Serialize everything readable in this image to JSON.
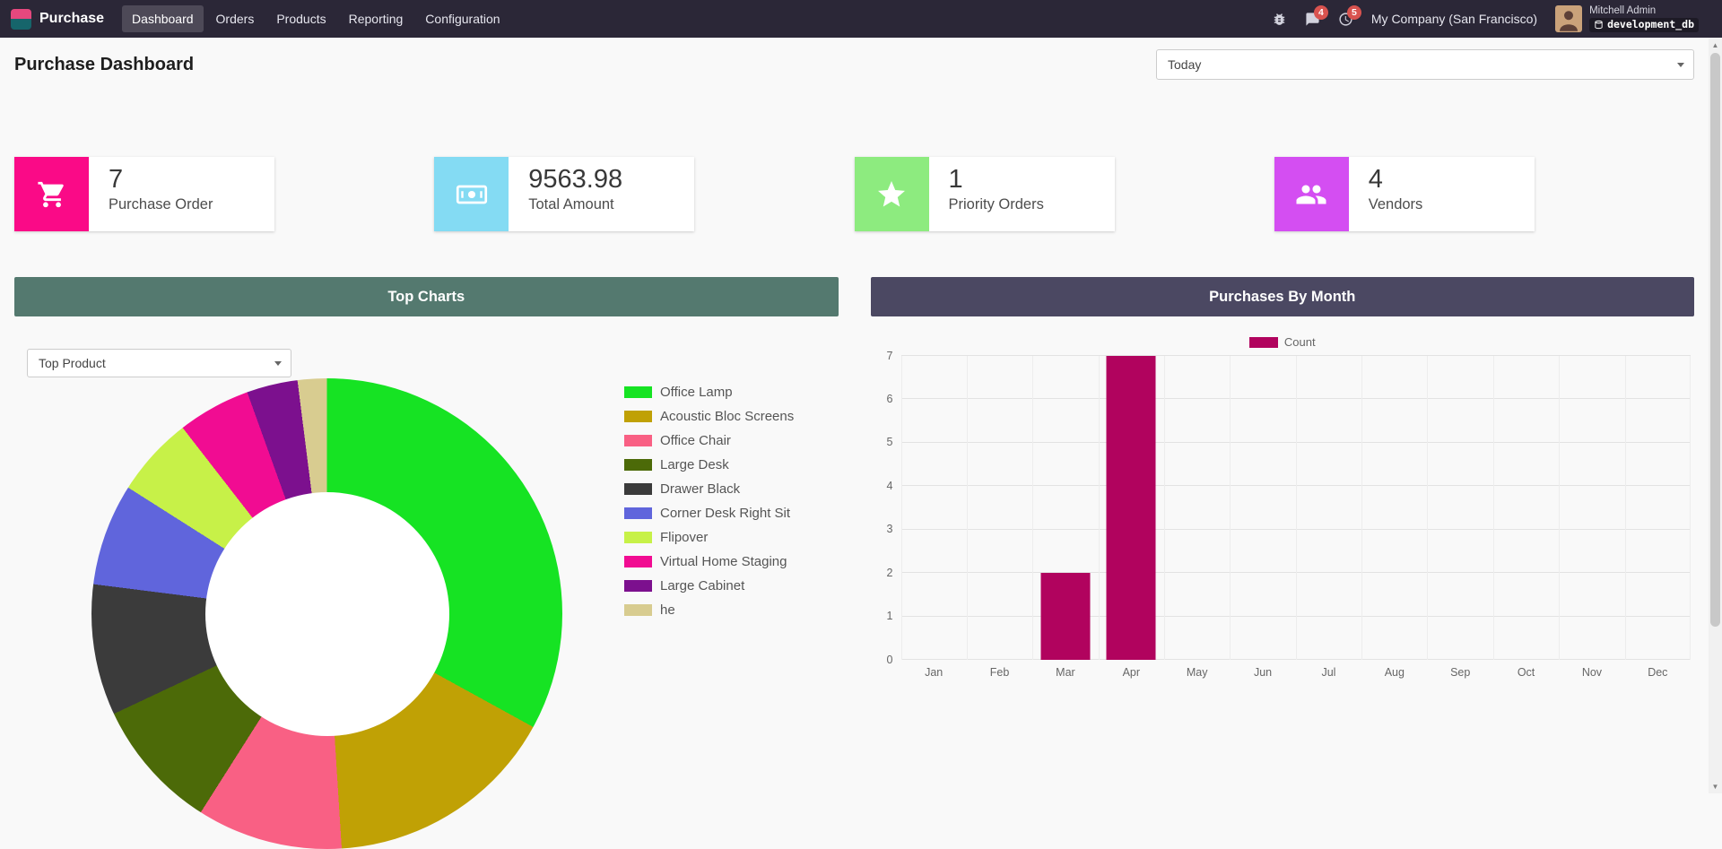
{
  "colors": {
    "navbar": "#2b2737",
    "badge": "#d9534f",
    "panel_teal": "#54796f",
    "panel_slate": "#4b4862",
    "bar": "#b1035e",
    "app_icon_top": "#e5487e",
    "app_icon_bottom": "#16656b"
  },
  "nav": {
    "brand": "Purchase",
    "menu": [
      {
        "label": "Dashboard",
        "active": true
      },
      {
        "label": "Orders",
        "active": false
      },
      {
        "label": "Products",
        "active": false
      },
      {
        "label": "Reporting",
        "active": false
      },
      {
        "label": "Configuration",
        "active": false
      }
    ],
    "systray": {
      "messages_badge": "4",
      "activities_badge": "5",
      "company": "My Company (San Francisco)",
      "user_name": "Mitchell Admin",
      "database": "development_db"
    }
  },
  "header": {
    "title": "Purchase Dashboard",
    "filter_value": "Today"
  },
  "kpis": [
    {
      "value": "7",
      "label": "Purchase Order",
      "icon": "cart-icon",
      "color": "#fa0a87"
    },
    {
      "value": "9563.98",
      "label": "Total Amount",
      "icon": "money-icon",
      "color": "#84dbf3"
    },
    {
      "value": "1",
      "label": "Priority Orders",
      "icon": "star-icon",
      "color": "#8deb7f"
    },
    {
      "value": "4",
      "label": "Vendors",
      "icon": "users-icon",
      "color": "#d44ef2"
    }
  ],
  "panels": {
    "top_charts": {
      "title": "Top Charts",
      "selector_value": "Top Product"
    },
    "purchases_by_month": {
      "title": "Purchases By Month",
      "legend": "Count"
    }
  },
  "chart_data": [
    {
      "type": "pie",
      "title": "Top Charts",
      "donut": true,
      "legend_position": "right",
      "labels": [
        "Office Lamp",
        "Acoustic Bloc Screens",
        "Office Chair",
        "Large Desk",
        "Drawer Black",
        "Corner Desk Right Sit",
        "Flipover",
        "Virtual Home Staging",
        "Large Cabinet",
        "he"
      ],
      "values": [
        33,
        16,
        10,
        9,
        9,
        7,
        5.5,
        5,
        3.5,
        2
      ],
      "colors": [
        "#16e323",
        "#c0a105",
        "#f96084",
        "#4c6a08",
        "#3b3b3b",
        "#6065dc",
        "#c7f148",
        "#f10c92",
        "#7c108e",
        "#d8cc90"
      ]
    },
    {
      "type": "bar",
      "title": "Purchases By Month",
      "categories": [
        "Jan",
        "Feb",
        "Mar",
        "Apr",
        "May",
        "Jun",
        "Jul",
        "Aug",
        "Sep",
        "Oct",
        "Nov",
        "Dec"
      ],
      "series": [
        {
          "name": "Count",
          "values": [
            0,
            0,
            2,
            7,
            0,
            0,
            0,
            0,
            0,
            0,
            0,
            0
          ],
          "color": "#b1035e"
        }
      ],
      "ylim": [
        0,
        7
      ],
      "yticks": [
        0,
        1,
        2,
        3,
        4,
        5,
        6,
        7
      ],
      "grid": true,
      "legend_position": "top"
    }
  ],
  "scrollbar": {
    "up_glyph": "▲",
    "down_glyph": "▼"
  }
}
